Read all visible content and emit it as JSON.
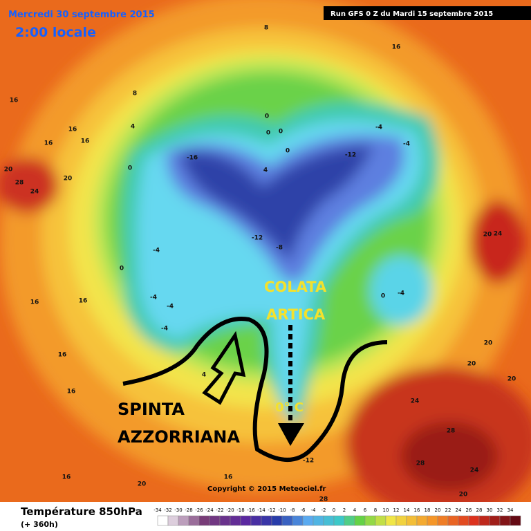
{
  "header": {
    "date": "Mercredi 30 septembre 2015",
    "time": "2:00 locale",
    "run": "Run GFS 0 Z du Mardi 15 septembre 2015"
  },
  "annotations": {
    "colata": [
      "COLATA",
      "ARTICA"
    ],
    "spinta": [
      "SPINTA",
      "AZZORRIANA"
    ],
    "zero": "0° C"
  },
  "copyright": "Copyright © 2015 Meteociel.fr",
  "legend": {
    "title": "Température 850hPa",
    "subtitle": "(+ 360h)",
    "scale": [
      -34,
      -32,
      -30,
      -28,
      -26,
      -24,
      -22,
      -20,
      -18,
      -16,
      -14,
      -12,
      -10,
      -8,
      -6,
      -4,
      -2,
      0,
      2,
      4,
      6,
      8,
      10,
      12,
      14,
      16,
      18,
      20,
      22,
      24,
      26,
      28,
      30,
      32,
      34
    ]
  },
  "contour_labels": [
    8,
    16,
    16,
    8,
    4,
    16,
    16,
    16,
    20,
    28,
    24,
    20,
    0,
    -16,
    0,
    0,
    0,
    0,
    4,
    -12,
    -4,
    -4,
    -12,
    -8,
    -4,
    -4,
    -4,
    -4,
    0,
    16,
    16,
    16,
    16,
    16,
    20,
    16,
    0,
    -4,
    20,
    20,
    20,
    20,
    24,
    28,
    28,
    24,
    20,
    24,
    -12,
    28,
    4
  ]
}
